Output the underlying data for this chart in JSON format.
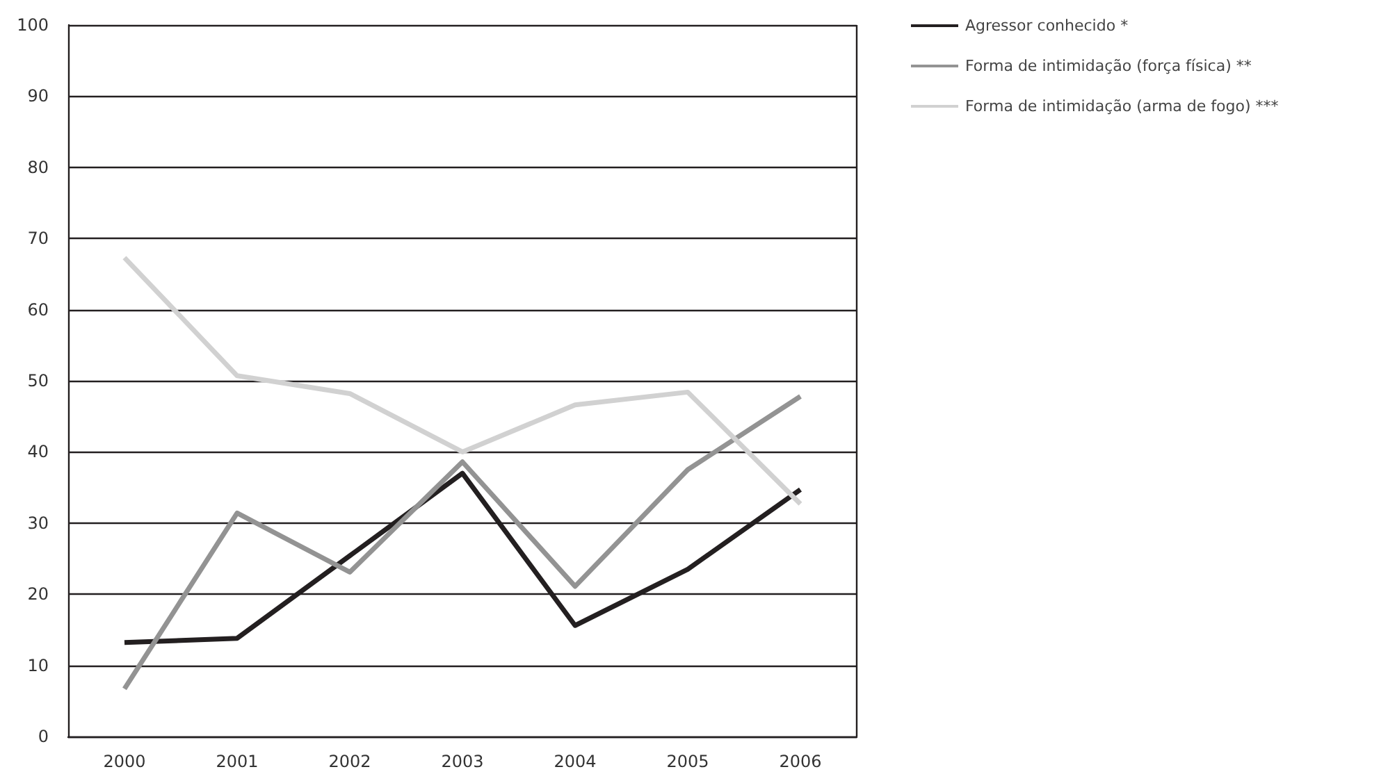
{
  "chart_data": {
    "type": "line",
    "categories": [
      "2000",
      "2001",
      "2002",
      "2003",
      "2004",
      "2005",
      "2006"
    ],
    "series": [
      {
        "name": "Agressor conhecido *",
        "color": "#231f20",
        "values": [
          13.2,
          13.8,
          25.4,
          37.0,
          15.6,
          23.5,
          34.7
        ]
      },
      {
        "name": "Forma de intimidação (força física) **",
        "color": "#939393",
        "values": [
          6.7,
          31.4,
          23.1,
          38.6,
          21.1,
          37.5,
          47.8
        ]
      },
      {
        "name": "Forma de intimidação (arma de fogo) ***",
        "color": "#d1d1d1",
        "values": [
          67.3,
          50.7,
          48.2,
          40.0,
          46.6,
          48.4,
          32.7
        ]
      }
    ],
    "ylim": [
      0,
      100
    ],
    "yticks": [
      0,
      10,
      20,
      30,
      40,
      50,
      60,
      70,
      80,
      90,
      100
    ],
    "grid": "y",
    "legend": "top right",
    "marker": "none",
    "line_style": "solid"
  }
}
